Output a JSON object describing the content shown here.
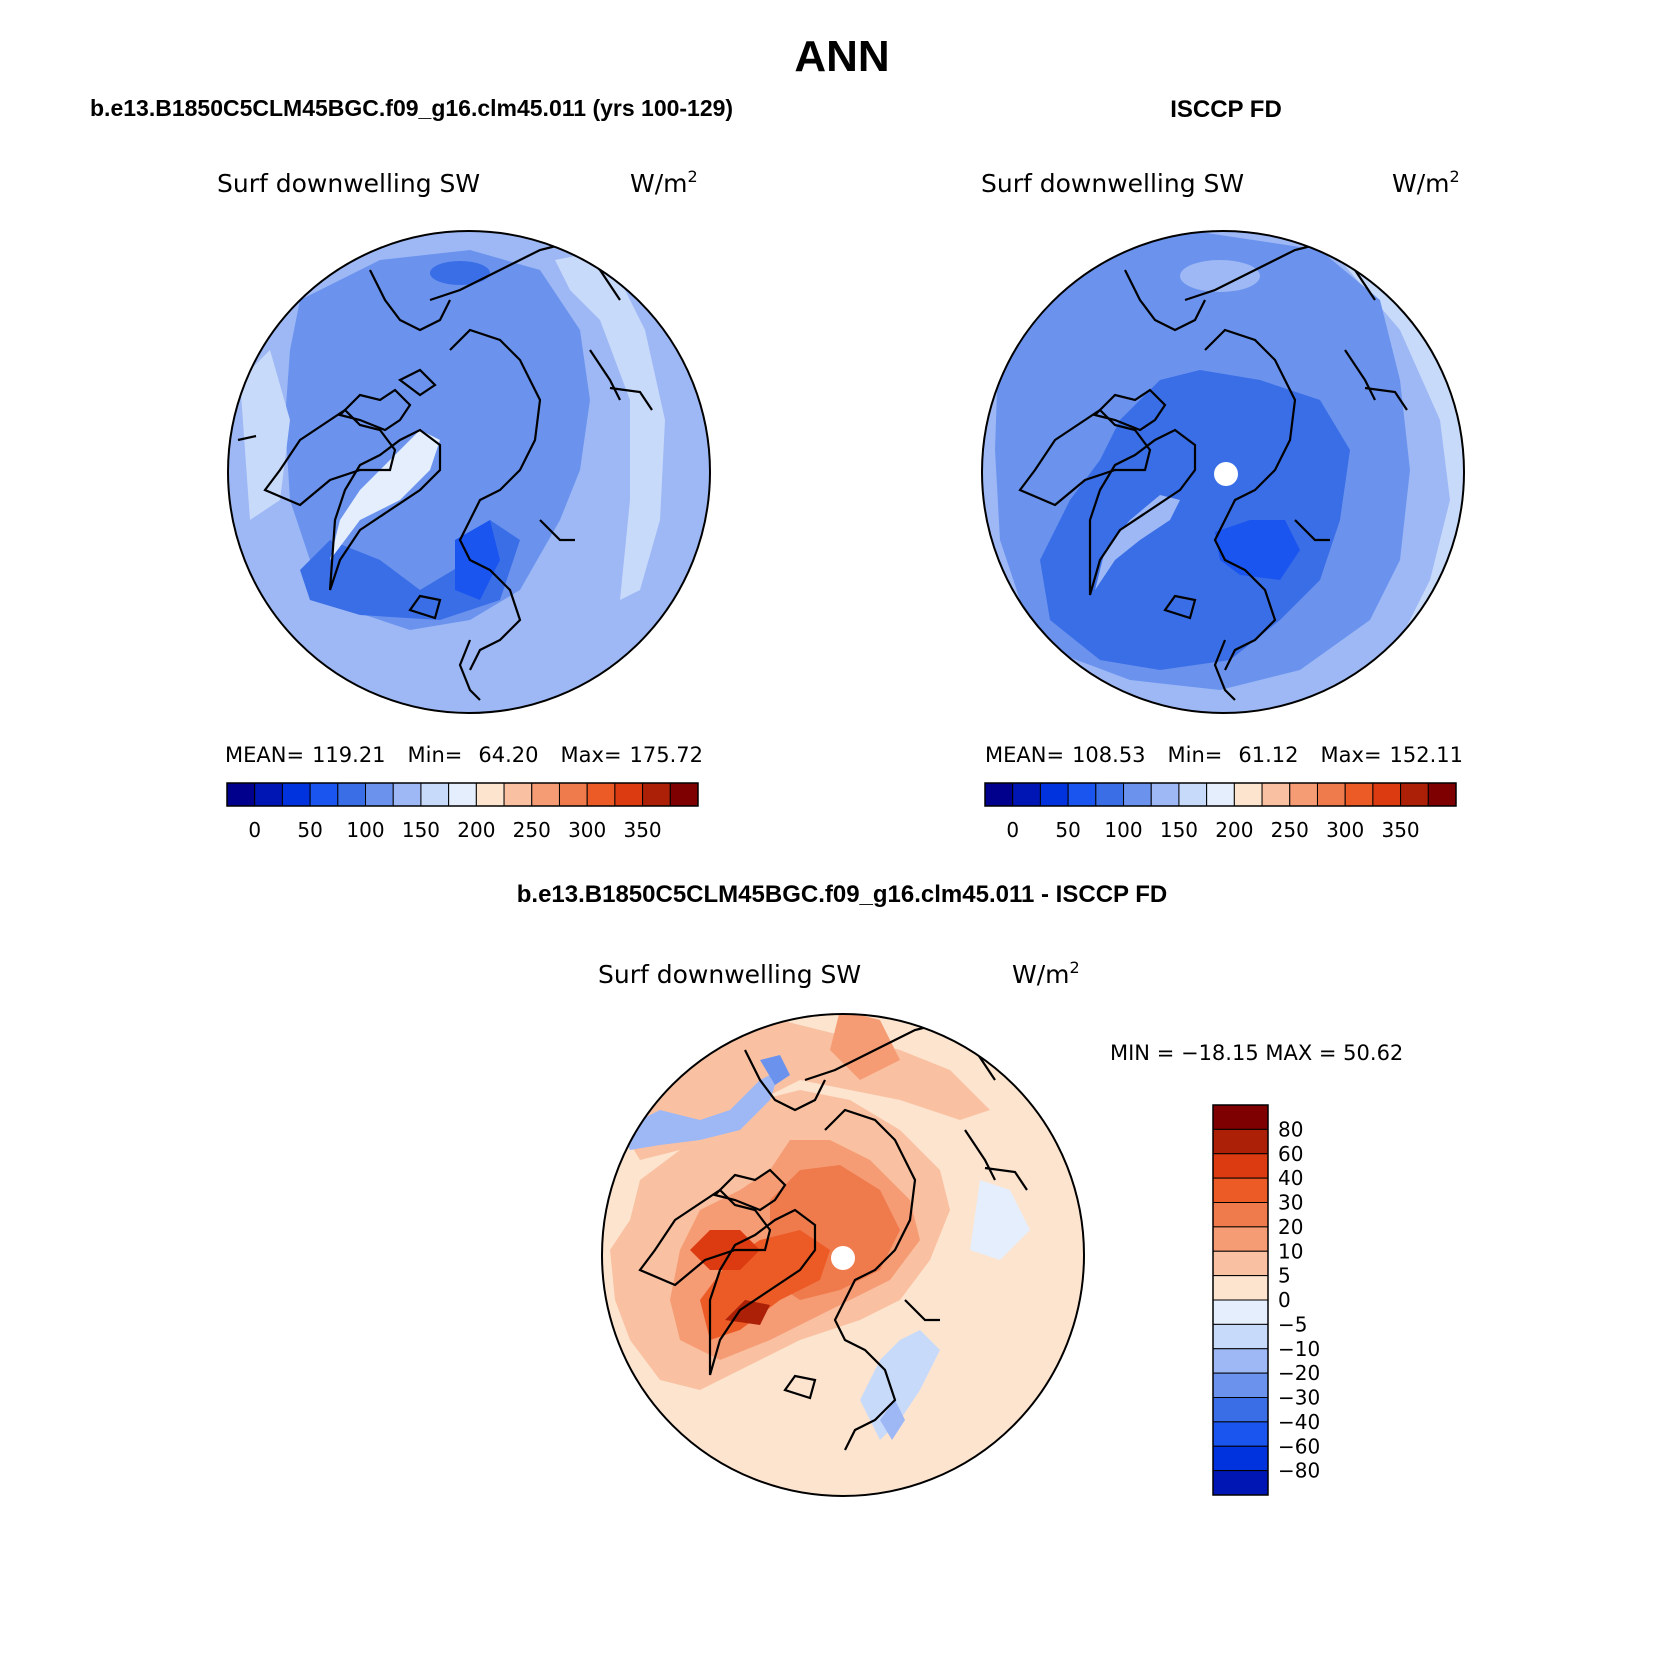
{
  "page_title": "ANN",
  "chart_data": [
    {
      "type": "heatmap",
      "panel": "model",
      "title": "b.e13.B1850C5CLM45BGC.f09_g16.clm45.011 (yrs 100-129)",
      "variable": "Surf downwelling SW",
      "units": "W/m",
      "units_sup": "2",
      "stats": {
        "mean_label": "MEAN=",
        "mean": "119.21",
        "min_label": "Min=",
        "min": "64.20",
        "max_label": "Max=",
        "max": "175.72"
      },
      "projection": "polar stereographic (North Pole)",
      "colorbar": {
        "levels": [
          25,
          50,
          75,
          100,
          125,
          150,
          175,
          200,
          225,
          250,
          275,
          300,
          325,
          350,
          375
        ],
        "tick_labels": [
          "0",
          "50",
          "100",
          "150",
          "200",
          "250",
          "300",
          "350"
        ]
      }
    },
    {
      "type": "heatmap",
      "panel": "obs",
      "title": "ISCCP FD",
      "variable": "Surf downwelling SW",
      "units": "W/m",
      "units_sup": "2",
      "stats": {
        "mean_label": "MEAN=",
        "mean": "108.53",
        "min_label": "Min=",
        "min": "61.12",
        "max_label": "Max=",
        "max": "152.11"
      },
      "projection": "polar stereographic (North Pole)",
      "colorbar": {
        "levels": [
          25,
          50,
          75,
          100,
          125,
          150,
          175,
          200,
          225,
          250,
          275,
          300,
          325,
          350,
          375
        ],
        "tick_labels": [
          "0",
          "50",
          "100",
          "150",
          "200",
          "250",
          "300",
          "350"
        ]
      }
    },
    {
      "type": "heatmap",
      "panel": "difference",
      "title": "b.e13.B1850C5CLM45BGC.f09_g16.clm45.011 - ISCCP FD",
      "variable": "Surf downwelling SW",
      "units": "W/m",
      "units_sup": "2",
      "stats": {
        "text": "MIN = −18.15 MAX =  50.62",
        "min": -18.15,
        "max": 50.62
      },
      "projection": "polar stereographic (North Pole)",
      "colorbar": {
        "levels": [
          80,
          60,
          40,
          30,
          20,
          10,
          5,
          0,
          -5,
          -10,
          -20,
          -30,
          -40,
          -60,
          -80
        ],
        "tick_labels": [
          "80",
          "60",
          "40",
          "30",
          "20",
          "10",
          "5",
          "0",
          "−5",
          "−10",
          "−20",
          "−30",
          "−40",
          "−60",
          "−80"
        ]
      }
    }
  ],
  "palettes": {
    "sequential": [
      "#00008c",
      "#0016b4",
      "#0033dd",
      "#1a55f0",
      "#3a6ee6",
      "#6b93ee",
      "#9db8f5",
      "#c8dafa",
      "#e4eefd",
      "#fde4cf",
      "#f9c1a2",
      "#f59c74",
      "#ef7a4c",
      "#ec5a26",
      "#dc3a10",
      "#ab2007",
      "#7e0000"
    ],
    "difference_bar": [
      "#7e0000",
      "#ab2007",
      "#dc3a10",
      "#ec5a26",
      "#ef7a4c",
      "#f59c74",
      "#f9c1a2",
      "#fde4cf",
      "#e4eefd",
      "#c8dafa",
      "#9db8f5",
      "#6b93ee",
      "#3a6ee6",
      "#1a55f0",
      "#0033dd",
      "#0016b4"
    ]
  }
}
